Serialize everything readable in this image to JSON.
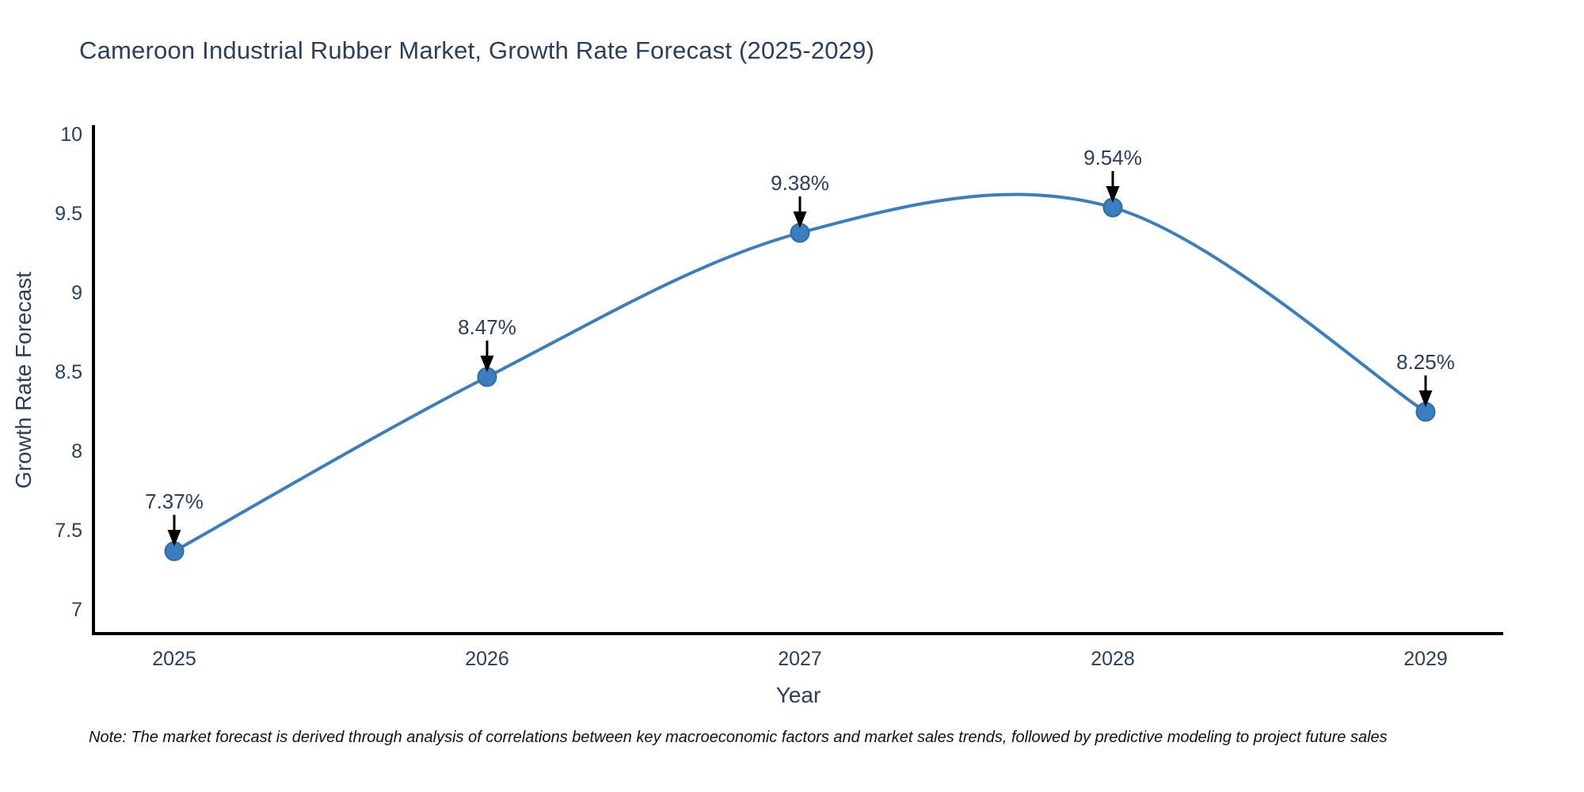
{
  "title": {
    "text": "Cameroon Industrial Rubber Market, Growth Rate Forecast (2025-2029)",
    "color": "#2a3f5f"
  },
  "chart_data": {
    "type": "line",
    "line_shape": "spline",
    "categories": [
      "2025",
      "2026",
      "2027",
      "2028",
      "2029"
    ],
    "values": [
      7.37,
      8.47,
      9.38,
      9.54,
      8.25
    ],
    "point_labels": [
      "7.37%",
      "8.47%",
      "9.38%",
      "9.54%",
      "8.25%"
    ],
    "series_name": "Growth Rate Forecast",
    "title": "Cameroon Industrial Rubber Market, Growth Rate Forecast (2025-2029)",
    "xlabel": "Year",
    "ylabel": "Growth Rate Forecast",
    "ylim": [
      7,
      10
    ],
    "yticks": [
      "7",
      "7.5",
      "8",
      "8.5",
      "9",
      "9.5",
      "10"
    ],
    "grid": false,
    "legend_position": "none",
    "line_color": "#3a7ebf",
    "marker_color": "#3a7ebf",
    "marker_edge_color": "#2f6da3",
    "axis_color": "#000000",
    "arrow_color": "#000000",
    "tick_color": "#2a3f5f"
  },
  "note": {
    "text": "Note: The market forecast is derived through analysis of correlations between key macroeconomic factors and market sales trends, followed by predictive modeling to project future sales"
  }
}
